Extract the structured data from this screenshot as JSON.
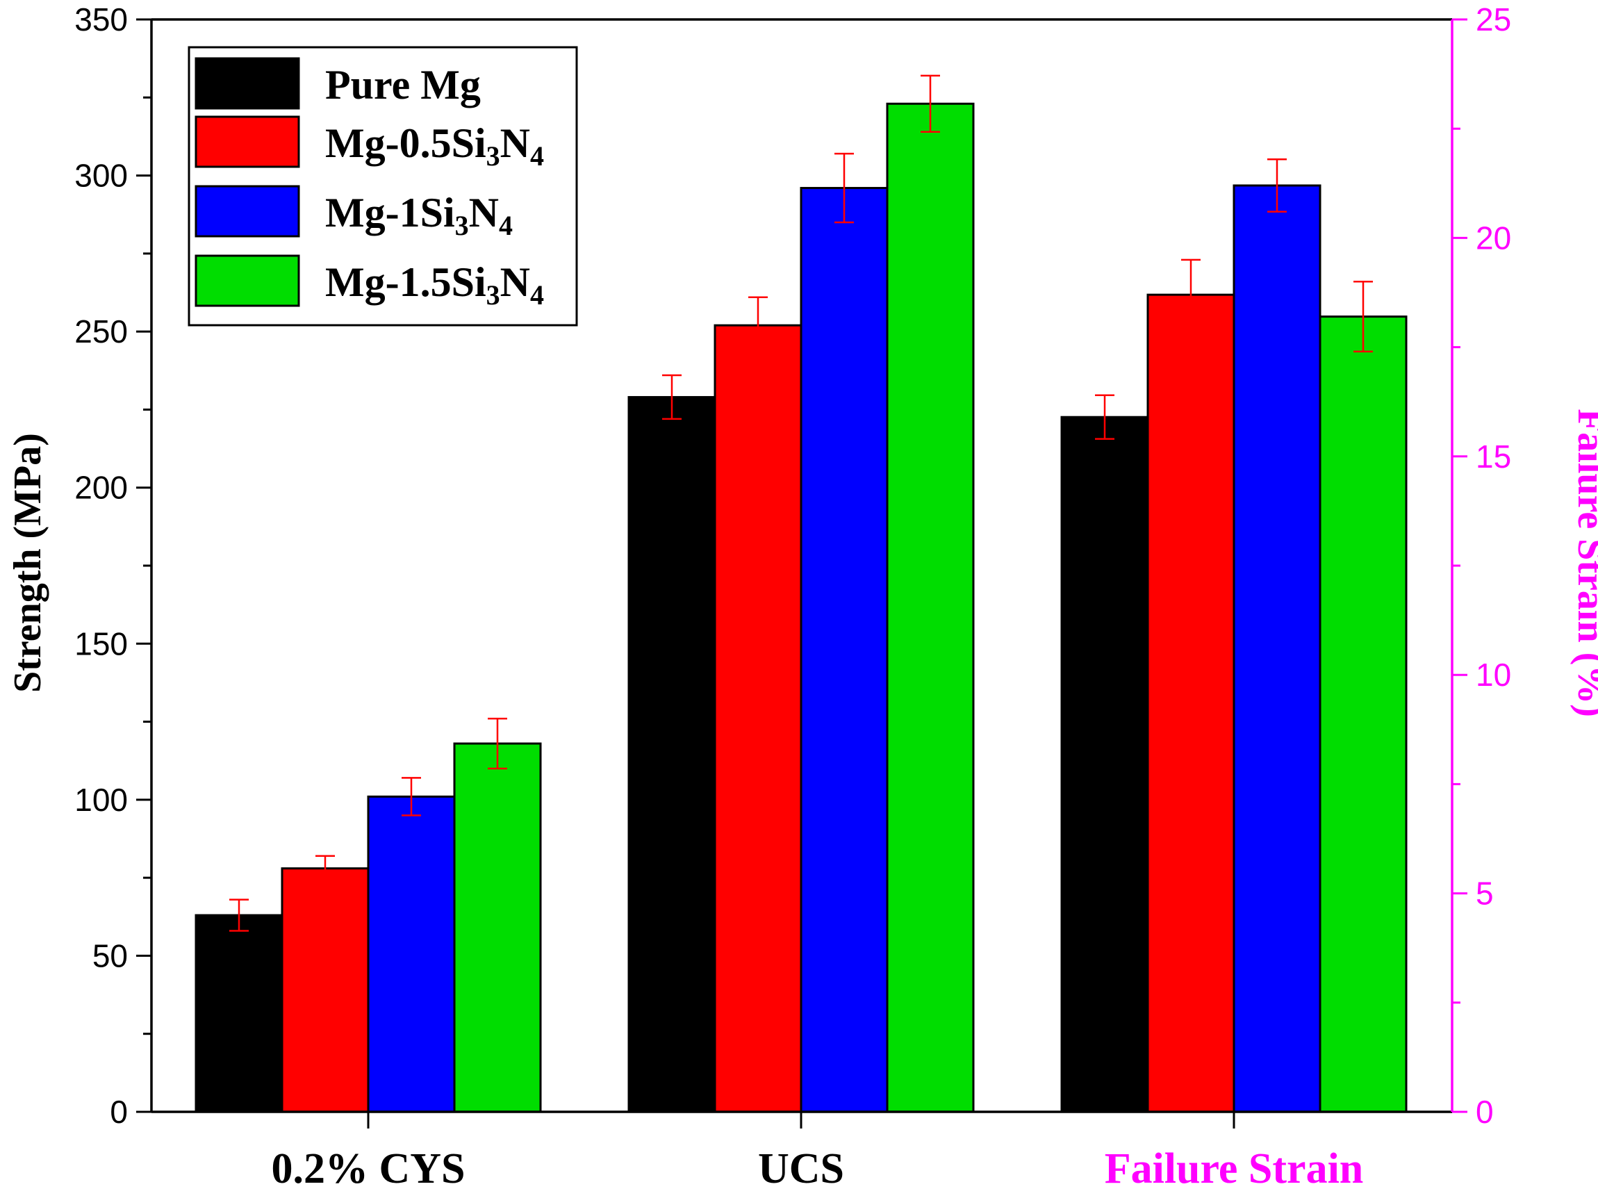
{
  "chart_data": {
    "type": "bar",
    "categories": [
      "0.2% CYS",
      "UCS",
      "Failure Strain"
    ],
    "category_colors": [
      "#000000",
      "#000000",
      "#ff00ff"
    ],
    "series": [
      {
        "name": "Pure Mg",
        "name_main": "Pure Mg",
        "sub1": "",
        "mid": "",
        "sub2": "",
        "color": "#000000",
        "values": [
          63,
          229,
          15.9
        ],
        "errors": [
          5,
          7,
          0.5
        ]
      },
      {
        "name": "Mg-0.5Si3N4",
        "name_main": "Mg-0.5Si",
        "sub1": "3",
        "mid": "N",
        "sub2": "4",
        "color": "#ff0000",
        "values": [
          78,
          252,
          18.7
        ],
        "errors": [
          4,
          9,
          0.8
        ]
      },
      {
        "name": "Mg-1Si3N4",
        "name_main": "Mg-1Si",
        "sub1": "3",
        "mid": "N",
        "sub2": "4",
        "color": "#0000ff",
        "values": [
          101,
          296,
          21.2
        ],
        "errors": [
          6,
          11,
          0.6
        ]
      },
      {
        "name": "Mg-1.5Si3N4",
        "name_main": "Mg-1.5Si",
        "sub1": "3",
        "mid": "N",
        "sub2": "4",
        "color": "#00dd00",
        "values": [
          118,
          323,
          18.2
        ],
        "errors": [
          8,
          9,
          0.8
        ]
      }
    ],
    "value_axis": [
      "left",
      "left",
      "right"
    ],
    "ylabel": "Strength (MPa)",
    "ylabel_right": "Failure Strain (%)",
    "ylim": [
      0,
      350
    ],
    "ylim_right": [
      0,
      25
    ],
    "yticks": [
      0,
      50,
      100,
      150,
      200,
      250,
      300,
      350
    ],
    "yticks_right": [
      0,
      5,
      10,
      15,
      20,
      25
    ],
    "axis_color_right": "#ff00ff",
    "errorbar_color": "#ff0000",
    "legend_position": "top-left"
  }
}
